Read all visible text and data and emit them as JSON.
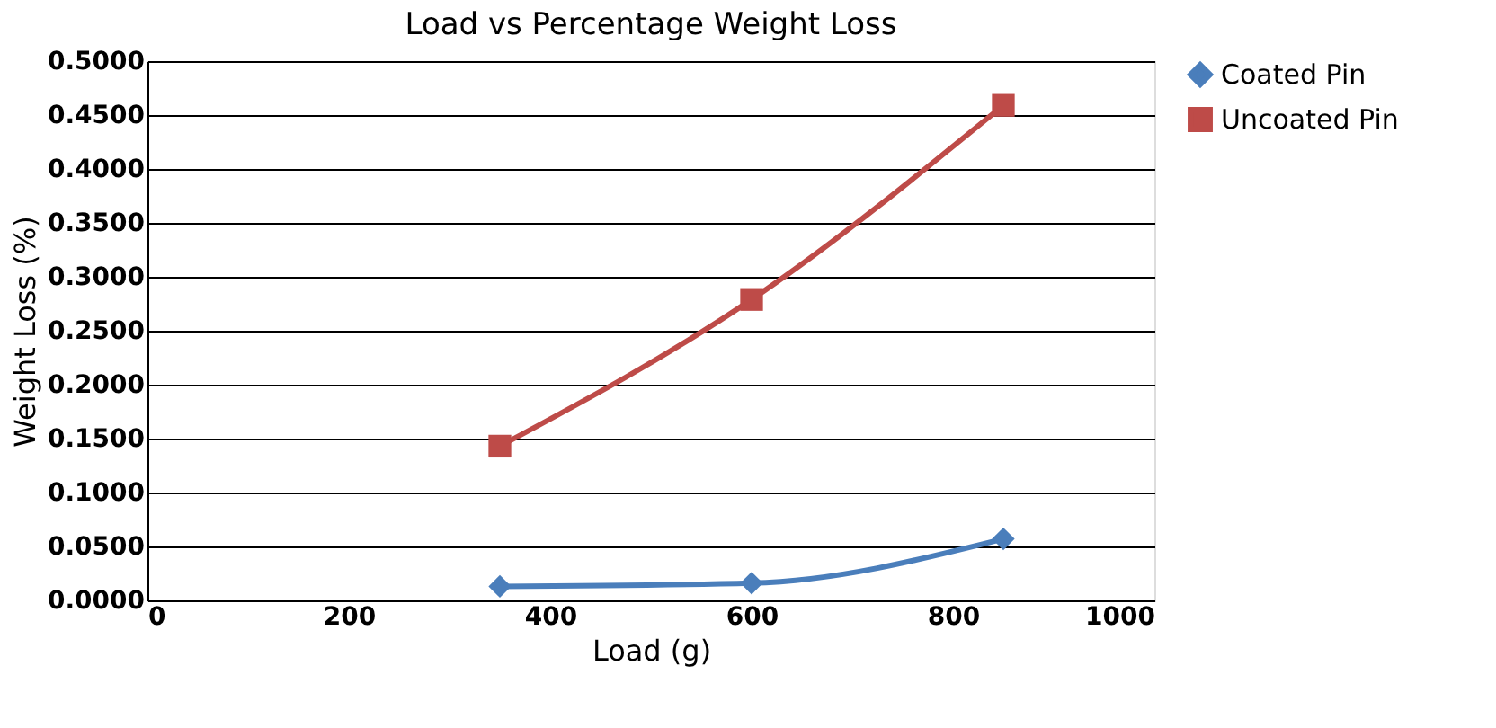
{
  "chart_data": {
    "type": "line",
    "title": "Load vs Percentage Weight Loss",
    "xlabel": "Load (g)",
    "ylabel": "Weight Loss (%)",
    "x": [
      350,
      600,
      850
    ],
    "series": [
      {
        "name": "Coated Pin",
        "color": "#4a7ebb",
        "marker": "diamond",
        "values": [
          0.013,
          0.016,
          0.057
        ]
      },
      {
        "name": "Uncoated Pin",
        "color": "#be4b48",
        "marker": "square",
        "values": [
          0.143,
          0.279,
          0.459
        ]
      }
    ],
    "xlim": [
      0,
      1000
    ],
    "xticks": [
      0,
      200,
      400,
      600,
      800,
      1000
    ],
    "ylim": [
      0,
      0.5
    ],
    "yticks": [
      {
        "value": 0,
        "label": "0.0000"
      },
      {
        "value": 0.05,
        "label": "0.0500"
      },
      {
        "value": 0.1,
        "label": "0.1000"
      },
      {
        "value": 0.15,
        "label": "0.1500"
      },
      {
        "value": 0.2,
        "label": "0.2000"
      },
      {
        "value": 0.25,
        "label": "0.2500"
      },
      {
        "value": 0.3,
        "label": "0.3000"
      },
      {
        "value": 0.35,
        "label": "0.3500"
      },
      {
        "value": 0.4,
        "label": "0.4000"
      },
      {
        "value": 0.45,
        "label": "0.4500"
      },
      {
        "value": 0.5,
        "label": "0.5000"
      }
    ],
    "grid": "y",
    "legend": "right"
  }
}
